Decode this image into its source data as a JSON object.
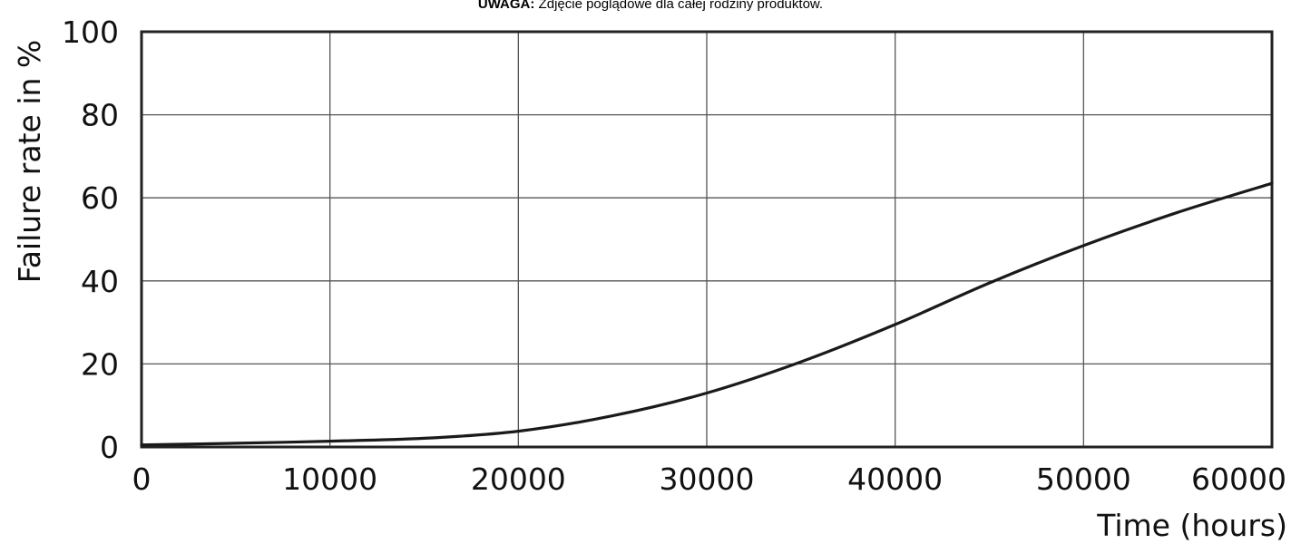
{
  "note": {
    "strong": "UWAGA:",
    "text": " Zdjęcie poglądowe dla całej rodziny produktów."
  },
  "chart_data": {
    "type": "line",
    "xlabel": "Time (hours)",
    "ylabel": "Failure rate in %",
    "xlim": [
      0,
      60000
    ],
    "ylim": [
      0,
      100
    ],
    "xticks": [
      "0",
      "10000",
      "20000",
      "30000",
      "40000",
      "50000",
      "60000"
    ],
    "yticks": [
      "0",
      "20",
      "40",
      "60",
      "80",
      "100"
    ],
    "grid": true,
    "series": [
      {
        "color": "#1a1a1a",
        "x": [
          0,
          5000,
          10000,
          15000,
          20000,
          25000,
          30000,
          35000,
          40000,
          45000,
          50000,
          55000,
          60000
        ],
        "y": [
          0.5,
          0.9,
          1.4,
          2.1,
          3.8,
          7.5,
          13,
          20.5,
          29.5,
          39.5,
          48.5,
          56.5,
          63.5
        ]
      }
    ]
  }
}
